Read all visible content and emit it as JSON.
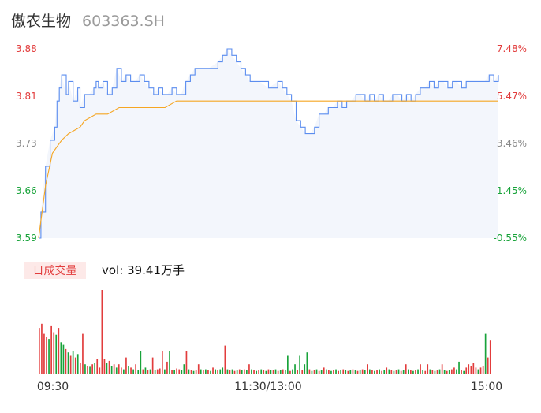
{
  "header": {
    "name": "傲农生物",
    "code": "603363.SH"
  },
  "volume_panel": {
    "tab_label": "日成交量",
    "vol_prefix": "vol:",
    "vol_value": "39.41万手"
  },
  "colors": {
    "price_line": "#5b8def",
    "avg_line": "#f5a623",
    "area": "#f3f6fc",
    "up": "#e23c3c",
    "down": "#18a33a",
    "neutral": "#888888"
  },
  "chart_data": [
    {
      "type": "line",
      "series": [],
      "y_left_ticks": [
        "3.88",
        "3.81",
        "3.73",
        "3.66",
        "3.59"
      ],
      "y_right_ticks": [
        "7.48%",
        "5.47%",
        "3.46%",
        "1.45%",
        "-0.55%"
      ],
      "x_ticks": [
        "09:30",
        "11:30/13:00",
        "15:00"
      ],
      "ylim": [
        3.59,
        3.88
      ],
      "price_points": [
        [
          0,
          3.59
        ],
        [
          1,
          3.63
        ],
        [
          3,
          3.7
        ],
        [
          5,
          3.74
        ],
        [
          7,
          3.76
        ],
        [
          8,
          3.8
        ],
        [
          9,
          3.82
        ],
        [
          10,
          3.84
        ],
        [
          12,
          3.81
        ],
        [
          13,
          3.83
        ],
        [
          15,
          3.8
        ],
        [
          17,
          3.82
        ],
        [
          18,
          3.79
        ],
        [
          20,
          3.81
        ],
        [
          22,
          3.81
        ],
        [
          24,
          3.82
        ],
        [
          25,
          3.83
        ],
        [
          26,
          3.82
        ],
        [
          28,
          3.83
        ],
        [
          30,
          3.81
        ],
        [
          32,
          3.82
        ],
        [
          34,
          3.85
        ],
        [
          36,
          3.83
        ],
        [
          38,
          3.84
        ],
        [
          40,
          3.83
        ],
        [
          42,
          3.83
        ],
        [
          44,
          3.84
        ],
        [
          46,
          3.83
        ],
        [
          48,
          3.82
        ],
        [
          50,
          3.81
        ],
        [
          52,
          3.82
        ],
        [
          54,
          3.81
        ],
        [
          56,
          3.81
        ],
        [
          58,
          3.82
        ],
        [
          60,
          3.81
        ],
        [
          62,
          3.81
        ],
        [
          64,
          3.83
        ],
        [
          66,
          3.84
        ],
        [
          68,
          3.85
        ],
        [
          72,
          3.85
        ],
        [
          74,
          3.85
        ],
        [
          78,
          3.86
        ],
        [
          80,
          3.87
        ],
        [
          82,
          3.88
        ],
        [
          84,
          3.87
        ],
        [
          86,
          3.86
        ],
        [
          88,
          3.85
        ],
        [
          90,
          3.84
        ],
        [
          92,
          3.83
        ],
        [
          96,
          3.83
        ],
        [
          100,
          3.82
        ],
        [
          104,
          3.83
        ],
        [
          106,
          3.82
        ],
        [
          108,
          3.81
        ],
        [
          110,
          3.8
        ],
        [
          112,
          3.77
        ],
        [
          114,
          3.76
        ],
        [
          116,
          3.75
        ],
        [
          118,
          3.75
        ],
        [
          120,
          3.76
        ],
        [
          122,
          3.78
        ],
        [
          124,
          3.78
        ],
        [
          126,
          3.79
        ],
        [
          128,
          3.79
        ],
        [
          130,
          3.8
        ],
        [
          132,
          3.79
        ],
        [
          134,
          3.8
        ],
        [
          136,
          3.8
        ],
        [
          138,
          3.81
        ],
        [
          140,
          3.81
        ],
        [
          142,
          3.8
        ],
        [
          144,
          3.81
        ],
        [
          146,
          3.8
        ],
        [
          148,
          3.81
        ],
        [
          150,
          3.8
        ],
        [
          152,
          3.8
        ],
        [
          154,
          3.81
        ],
        [
          156,
          3.81
        ],
        [
          158,
          3.8
        ],
        [
          160,
          3.81
        ],
        [
          162,
          3.8
        ],
        [
          164,
          3.81
        ],
        [
          166,
          3.82
        ],
        [
          168,
          3.82
        ],
        [
          170,
          3.83
        ],
        [
          172,
          3.82
        ],
        [
          174,
          3.83
        ],
        [
          176,
          3.83
        ],
        [
          178,
          3.82
        ],
        [
          180,
          3.83
        ],
        [
          182,
          3.83
        ],
        [
          184,
          3.82
        ],
        [
          186,
          3.83
        ],
        [
          188,
          3.83
        ],
        [
          190,
          3.83
        ],
        [
          192,
          3.83
        ],
        [
          194,
          3.83
        ],
        [
          196,
          3.84
        ],
        [
          198,
          3.83
        ],
        [
          200,
          3.84
        ]
      ],
      "avg_points": [
        [
          0,
          3.59
        ],
        [
          3,
          3.67
        ],
        [
          6,
          3.72
        ],
        [
          8,
          3.73
        ],
        [
          10,
          3.74
        ],
        [
          13,
          3.75
        ],
        [
          18,
          3.76
        ],
        [
          20,
          3.77
        ],
        [
          25,
          3.78
        ],
        [
          30,
          3.78
        ],
        [
          35,
          3.79
        ],
        [
          40,
          3.79
        ],
        [
          45,
          3.79
        ],
        [
          50,
          3.79
        ],
        [
          55,
          3.79
        ],
        [
          60,
          3.8
        ],
        [
          65,
          3.8
        ],
        [
          70,
          3.8
        ],
        [
          80,
          3.8
        ],
        [
          90,
          3.8
        ],
        [
          100,
          3.8
        ],
        [
          120,
          3.8
        ],
        [
          140,
          3.8
        ],
        [
          160,
          3.8
        ],
        [
          180,
          3.8
        ],
        [
          200,
          3.8
        ]
      ]
    },
    {
      "type": "bar",
      "series": [],
      "max_volume": 1.0,
      "volumes": [
        [
          0.55,
          "u"
        ],
        [
          0.6,
          "u"
        ],
        [
          0.48,
          "u"
        ],
        [
          0.44,
          "u"
        ],
        [
          0.42,
          "d"
        ],
        [
          0.58,
          "u"
        ],
        [
          0.5,
          "u"
        ],
        [
          0.47,
          "d"
        ],
        [
          0.55,
          "u"
        ],
        [
          0.38,
          "d"
        ],
        [
          0.35,
          "d"
        ],
        [
          0.3,
          "u"
        ],
        [
          0.26,
          "d"
        ],
        [
          0.22,
          "u"
        ],
        [
          0.28,
          "d"
        ],
        [
          0.2,
          "u"
        ],
        [
          0.24,
          "d"
        ],
        [
          0.14,
          "u"
        ],
        [
          0.48,
          "u"
        ],
        [
          0.12,
          "d"
        ],
        [
          0.1,
          "u"
        ],
        [
          0.09,
          "d"
        ],
        [
          0.12,
          "u"
        ],
        [
          0.14,
          "d"
        ],
        [
          0.18,
          "u"
        ],
        [
          0.08,
          "u"
        ],
        [
          1.0,
          "u"
        ],
        [
          0.18,
          "u"
        ],
        [
          0.14,
          "d"
        ],
        [
          0.16,
          "u"
        ],
        [
          0.1,
          "d"
        ],
        [
          0.12,
          "u"
        ],
        [
          0.08,
          "d"
        ],
        [
          0.12,
          "u"
        ],
        [
          0.08,
          "u"
        ],
        [
          0.06,
          "d"
        ],
        [
          0.2,
          "u"
        ],
        [
          0.1,
          "d"
        ],
        [
          0.08,
          "u"
        ],
        [
          0.06,
          "d"
        ],
        [
          0.12,
          "u"
        ],
        [
          0.05,
          "d"
        ],
        [
          0.28,
          "d"
        ],
        [
          0.06,
          "u"
        ],
        [
          0.08,
          "d"
        ],
        [
          0.05,
          "u"
        ],
        [
          0.06,
          "d"
        ],
        [
          0.2,
          "u"
        ],
        [
          0.05,
          "d"
        ],
        [
          0.06,
          "u"
        ],
        [
          0.07,
          "u"
        ],
        [
          0.28,
          "u"
        ],
        [
          0.06,
          "d"
        ],
        [
          0.15,
          "u"
        ],
        [
          0.28,
          "d"
        ],
        [
          0.05,
          "u"
        ],
        [
          0.05,
          "d"
        ],
        [
          0.07,
          "u"
        ],
        [
          0.06,
          "u"
        ],
        [
          0.05,
          "d"
        ],
        [
          0.12,
          "d"
        ],
        [
          0.28,
          "u"
        ],
        [
          0.06,
          "d"
        ],
        [
          0.05,
          "u"
        ],
        [
          0.04,
          "d"
        ],
        [
          0.05,
          "u"
        ],
        [
          0.12,
          "u"
        ],
        [
          0.06,
          "d"
        ],
        [
          0.05,
          "u"
        ],
        [
          0.06,
          "d"
        ],
        [
          0.05,
          "u"
        ],
        [
          0.04,
          "d"
        ],
        [
          0.08,
          "u"
        ],
        [
          0.06,
          "d"
        ],
        [
          0.05,
          "u"
        ],
        [
          0.06,
          "d"
        ],
        [
          0.08,
          "d"
        ],
        [
          0.34,
          "u"
        ],
        [
          0.06,
          "d"
        ],
        [
          0.05,
          "u"
        ],
        [
          0.06,
          "d"
        ],
        [
          0.04,
          "u"
        ],
        [
          0.05,
          "d"
        ],
        [
          0.06,
          "u"
        ],
        [
          0.05,
          "d"
        ],
        [
          0.06,
          "u"
        ],
        [
          0.05,
          "d"
        ],
        [
          0.12,
          "u"
        ],
        [
          0.06,
          "d"
        ],
        [
          0.05,
          "u"
        ],
        [
          0.04,
          "d"
        ],
        [
          0.05,
          "u"
        ],
        [
          0.06,
          "d"
        ],
        [
          0.05,
          "u"
        ],
        [
          0.04,
          "d"
        ],
        [
          0.06,
          "u"
        ],
        [
          0.05,
          "d"
        ],
        [
          0.05,
          "u"
        ],
        [
          0.06,
          "d"
        ],
        [
          0.04,
          "u"
        ],
        [
          0.05,
          "d"
        ],
        [
          0.06,
          "u"
        ],
        [
          0.05,
          "d"
        ],
        [
          0.22,
          "d"
        ],
        [
          0.04,
          "u"
        ],
        [
          0.06,
          "d"
        ],
        [
          0.12,
          "d"
        ],
        [
          0.05,
          "u"
        ],
        [
          0.22,
          "d"
        ],
        [
          0.05,
          "u"
        ],
        [
          0.12,
          "d"
        ],
        [
          0.26,
          "d"
        ],
        [
          0.06,
          "u"
        ],
        [
          0.04,
          "d"
        ],
        [
          0.05,
          "u"
        ],
        [
          0.06,
          "d"
        ],
        [
          0.04,
          "u"
        ],
        [
          0.05,
          "d"
        ],
        [
          0.08,
          "u"
        ],
        [
          0.06,
          "d"
        ],
        [
          0.05,
          "u"
        ],
        [
          0.04,
          "d"
        ],
        [
          0.05,
          "u"
        ],
        [
          0.06,
          "d"
        ],
        [
          0.04,
          "u"
        ],
        [
          0.05,
          "d"
        ],
        [
          0.06,
          "u"
        ],
        [
          0.05,
          "d"
        ],
        [
          0.04,
          "u"
        ],
        [
          0.05,
          "d"
        ],
        [
          0.06,
          "u"
        ],
        [
          0.05,
          "d"
        ],
        [
          0.04,
          "u"
        ],
        [
          0.05,
          "d"
        ],
        [
          0.06,
          "u"
        ],
        [
          0.05,
          "d"
        ],
        [
          0.12,
          "u"
        ],
        [
          0.06,
          "d"
        ],
        [
          0.05,
          "u"
        ],
        [
          0.04,
          "d"
        ],
        [
          0.05,
          "u"
        ],
        [
          0.06,
          "d"
        ],
        [
          0.04,
          "u"
        ],
        [
          0.05,
          "d"
        ],
        [
          0.08,
          "u"
        ],
        [
          0.06,
          "d"
        ],
        [
          0.05,
          "u"
        ],
        [
          0.04,
          "d"
        ],
        [
          0.05,
          "u"
        ],
        [
          0.06,
          "d"
        ],
        [
          0.04,
          "u"
        ],
        [
          0.05,
          "d"
        ],
        [
          0.12,
          "u"
        ],
        [
          0.06,
          "d"
        ],
        [
          0.05,
          "u"
        ],
        [
          0.04,
          "d"
        ],
        [
          0.05,
          "u"
        ],
        [
          0.06,
          "d"
        ],
        [
          0.12,
          "u"
        ],
        [
          0.05,
          "d"
        ],
        [
          0.04,
          "u"
        ],
        [
          0.12,
          "u"
        ],
        [
          0.06,
          "d"
        ],
        [
          0.05,
          "u"
        ],
        [
          0.04,
          "d"
        ],
        [
          0.05,
          "u"
        ],
        [
          0.06,
          "d"
        ],
        [
          0.12,
          "u"
        ],
        [
          0.05,
          "d"
        ],
        [
          0.04,
          "u"
        ],
        [
          0.05,
          "d"
        ],
        [
          0.06,
          "u"
        ],
        [
          0.08,
          "u"
        ],
        [
          0.06,
          "d"
        ],
        [
          0.15,
          "d"
        ],
        [
          0.05,
          "u"
        ],
        [
          0.04,
          "d"
        ],
        [
          0.08,
          "u"
        ],
        [
          0.12,
          "u"
        ],
        [
          0.1,
          "u"
        ],
        [
          0.14,
          "u"
        ],
        [
          0.08,
          "u"
        ],
        [
          0.06,
          "d"
        ],
        [
          0.08,
          "u"
        ],
        [
          0.1,
          "u"
        ],
        [
          0.48,
          "d"
        ],
        [
          0.2,
          "u"
        ],
        [
          0.4,
          "u"
        ]
      ]
    }
  ]
}
